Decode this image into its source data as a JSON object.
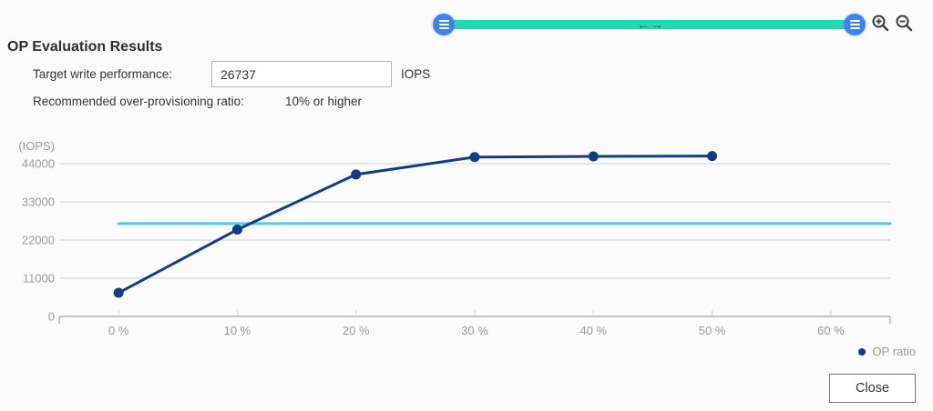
{
  "header": {
    "title": "OP Evaluation Results",
    "target_label": "Target write performance:",
    "target_value": "26737",
    "target_unit": "IOPS",
    "recommend_label": "Recommended over-provisioning ratio:",
    "recommend_value": "10% or higher"
  },
  "range_slider": {
    "track_color": "#17deb2",
    "handle_color": "#4080f0",
    "left_handle_icon": "hamburger-lines",
    "right_handle_icon": "hamburger-lines",
    "pan_arrows_glyph": "←→"
  },
  "toolbar": {
    "zoom_in_icon": "magnifier-plus",
    "zoom_out_icon": "magnifier-minus"
  },
  "legend": {
    "label": "OP ratio",
    "dot_color": "#143a8c"
  },
  "footer": {
    "close_label": "Close"
  },
  "chart_data": {
    "type": "line",
    "title": "",
    "ylabel": "(IOPS)",
    "xlabel": "",
    "x": [
      0,
      10,
      20,
      30,
      40,
      50
    ],
    "series": [
      {
        "name": "OP ratio",
        "color": "#143a8c",
        "values": [
          6800,
          25000,
          40900,
          45900,
          46100,
          46200
        ]
      }
    ],
    "target_line": {
      "value": 26737,
      "color": "#55c5f2",
      "label": "Target write performance"
    },
    "x_tick_values": [
      0,
      10,
      20,
      30,
      40,
      50,
      60
    ],
    "x_ticks": [
      "0 %",
      "10 %",
      "20 %",
      "30 %",
      "40 %",
      "50 %",
      "60 %"
    ],
    "y_ticks": [
      0,
      11000,
      22000,
      33000,
      44000
    ],
    "xlim": [
      -5,
      65
    ],
    "ylim": [
      0,
      50000
    ],
    "grid": true,
    "legend_position": "bottom-right",
    "grid_color": "#d2d2d2",
    "axis_color": "#b3b3b3",
    "tick_label_color": "#9a9a9a"
  }
}
